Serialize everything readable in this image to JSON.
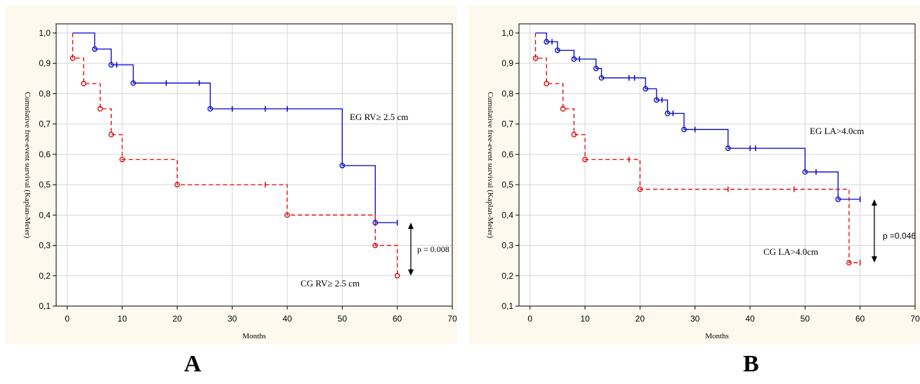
{
  "chart_data": [
    {
      "panel_letter": "A",
      "type": "line",
      "chart_style": "kaplan-meier step",
      "xlabel": "Months",
      "ylabel": "Cumulative free-event survival (Kaplan-Meier)",
      "xlim": [
        -2,
        70
      ],
      "ylim": [
        0.1,
        1.03
      ],
      "xticks": [
        0,
        10,
        20,
        30,
        40,
        50,
        60,
        70
      ],
      "yticks": [
        "0,1",
        "0,2",
        "0,3",
        "0,4",
        "0,5",
        "0,6",
        "0,7",
        "0,8",
        "0,9",
        "1,0"
      ],
      "grid": true,
      "series": [
        {
          "name": "EG RV≥ 2.5 cm",
          "color": "#0000cc",
          "dash": false,
          "steps": [
            [
              1,
              1.0
            ],
            [
              5,
              0.947
            ],
            [
              8,
              0.895
            ],
            [
              12,
              0.835
            ],
            [
              26,
              0.75
            ],
            [
              50,
              0.563
            ],
            [
              56,
              0.375
            ],
            [
              60,
              0.375
            ]
          ],
          "events": [
            [
              5,
              0.947
            ],
            [
              8,
              0.895
            ],
            [
              12,
              0.835
            ],
            [
              26,
              0.75
            ],
            [
              50,
              0.563
            ],
            [
              56,
              0.375
            ]
          ],
          "censored": [
            [
              9,
              0.895
            ],
            [
              18,
              0.835
            ],
            [
              24,
              0.835
            ],
            [
              30,
              0.75
            ],
            [
              36,
              0.75
            ],
            [
              40,
              0.75
            ],
            [
              60,
              0.375
            ]
          ]
        },
        {
          "name": "CG RV≥ 2.5 cm",
          "color": "#dd0000",
          "dash": true,
          "steps": [
            [
              1,
              1.0
            ],
            [
              1,
              0.917
            ],
            [
              3,
              0.833
            ],
            [
              6,
              0.75
            ],
            [
              8,
              0.665
            ],
            [
              10,
              0.583
            ],
            [
              20,
              0.5
            ],
            [
              40,
              0.4
            ],
            [
              56,
              0.3
            ],
            [
              60,
              0.2
            ]
          ],
          "events": [
            [
              1,
              0.917
            ],
            [
              3,
              0.833
            ],
            [
              6,
              0.75
            ],
            [
              8,
              0.665
            ],
            [
              10,
              0.583
            ],
            [
              20,
              0.5
            ],
            [
              40,
              0.4
            ],
            [
              56,
              0.3
            ],
            [
              60,
              0.2
            ]
          ],
          "censored": [
            [
              36,
              0.5
            ]
          ]
        }
      ],
      "annotations": {
        "eg_label": "EG RV≥ 2.5 cm",
        "cg_label": "CG RV≥ 2.5 cm",
        "p_value": "p = 0.008"
      }
    },
    {
      "panel_letter": "B",
      "type": "line",
      "chart_style": "kaplan-meier step",
      "xlabel": "Months",
      "ylabel": "Cumulative free-event survival (Kaplan-Meier)",
      "xlim": [
        -2,
        70
      ],
      "ylim": [
        0.1,
        1.03
      ],
      "xticks": [
        0,
        10,
        20,
        30,
        40,
        50,
        60,
        70
      ],
      "yticks": [
        "0,1",
        "0,2",
        "0,3",
        "0,4",
        "0,5",
        "0,6",
        "0,7",
        "0,8",
        "0,9",
        "1,0"
      ],
      "grid": true,
      "series": [
        {
          "name": "EG LA>4.0cm",
          "color": "#0000cc",
          "dash": false,
          "steps": [
            [
              1,
              1.0
            ],
            [
              3,
              0.971
            ],
            [
              5,
              0.943
            ],
            [
              8,
              0.914
            ],
            [
              12,
              0.883
            ],
            [
              13,
              0.852
            ],
            [
              21,
              0.816
            ],
            [
              23,
              0.779
            ],
            [
              25,
              0.735
            ],
            [
              28,
              0.682
            ],
            [
              36,
              0.62
            ],
            [
              50,
              0.542
            ],
            [
              56,
              0.452
            ],
            [
              60,
              0.452
            ]
          ],
          "events": [
            [
              3,
              0.971
            ],
            [
              5,
              0.943
            ],
            [
              8,
              0.914
            ],
            [
              12,
              0.883
            ],
            [
              13,
              0.852
            ],
            [
              21,
              0.816
            ],
            [
              23,
              0.779
            ],
            [
              25,
              0.735
            ],
            [
              28,
              0.682
            ],
            [
              36,
              0.62
            ],
            [
              50,
              0.542
            ],
            [
              56,
              0.452
            ]
          ],
          "censored": [
            [
              4,
              0.971
            ],
            [
              9,
              0.914
            ],
            [
              18,
              0.852
            ],
            [
              19,
              0.852
            ],
            [
              24,
              0.779
            ],
            [
              26,
              0.735
            ],
            [
              30,
              0.682
            ],
            [
              40,
              0.62
            ],
            [
              41,
              0.62
            ],
            [
              52,
              0.542
            ],
            [
              60,
              0.452
            ]
          ]
        },
        {
          "name": "CG LA>4.0cm",
          "color": "#dd0000",
          "dash": true,
          "steps": [
            [
              1,
              1.0
            ],
            [
              1,
              0.917
            ],
            [
              3,
              0.833
            ],
            [
              6,
              0.75
            ],
            [
              8,
              0.665
            ],
            [
              10,
              0.583
            ],
            [
              20,
              0.485
            ],
            [
              58,
              0.243
            ],
            [
              60,
              0.243
            ]
          ],
          "events": [
            [
              1,
              0.917
            ],
            [
              3,
              0.833
            ],
            [
              6,
              0.75
            ],
            [
              8,
              0.665
            ],
            [
              10,
              0.583
            ],
            [
              20,
              0.485
            ],
            [
              58,
              0.243
            ]
          ],
          "censored": [
            [
              18,
              0.583
            ],
            [
              36,
              0.485
            ],
            [
              48,
              0.485
            ],
            [
              60,
              0.243
            ]
          ]
        }
      ],
      "annotations": {
        "eg_label": "EG LA>4.0cm",
        "cg_label": "CG LA>4.0cm",
        "p_value": "p =0.046"
      }
    }
  ]
}
